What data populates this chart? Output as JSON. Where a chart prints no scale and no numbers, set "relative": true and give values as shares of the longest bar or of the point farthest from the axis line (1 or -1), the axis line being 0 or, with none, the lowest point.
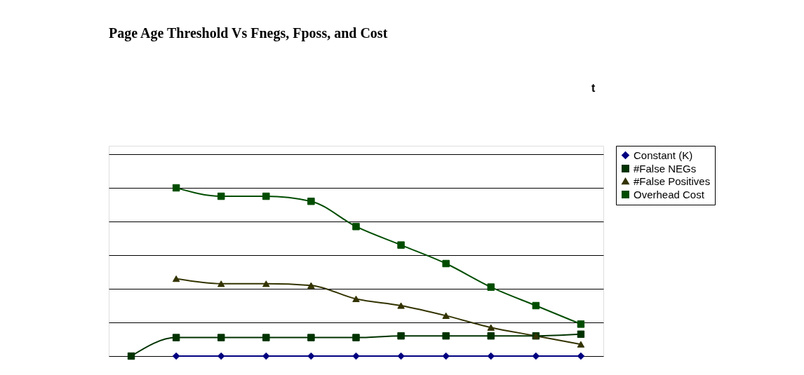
{
  "chart_data": {
    "type": "line",
    "title": "Page Age Threshold Vs Fnegs, Fposs, and Cost",
    "annotations": [
      "t"
    ],
    "relative": true,
    "grid": "y",
    "legend": "right",
    "categories": [
      null,
      null,
      null,
      null,
      null,
      null,
      null,
      null,
      null,
      null,
      null
    ],
    "series": [
      {
        "name": "Constant (K)",
        "color": "#000080",
        "marker": "diamond",
        "values": [
          null,
          0,
          0,
          0,
          0,
          0,
          0,
          0,
          0,
          0,
          0
        ]
      },
      {
        "name": "#False NEGs",
        "color": "#003300",
        "marker": "square",
        "values": [
          0,
          0.11,
          0.11,
          0.11,
          0.11,
          0.11,
          0.12,
          0.12,
          0.12,
          0.12,
          0.13
        ]
      },
      {
        "name": "#False Positives",
        "color": "#333300",
        "marker": "triangle",
        "values": [
          null,
          0.46,
          0.43,
          0.43,
          0.42,
          0.34,
          0.3,
          0.24,
          0.17,
          0.12,
          0.07
        ]
      },
      {
        "name": "Overhead Cost",
        "color": "#004d00",
        "marker": "square",
        "values": [
          null,
          1,
          0.95,
          0.95,
          0.92,
          0.77,
          0.66,
          0.55,
          0.41,
          0.3,
          0.19
        ]
      }
    ]
  }
}
